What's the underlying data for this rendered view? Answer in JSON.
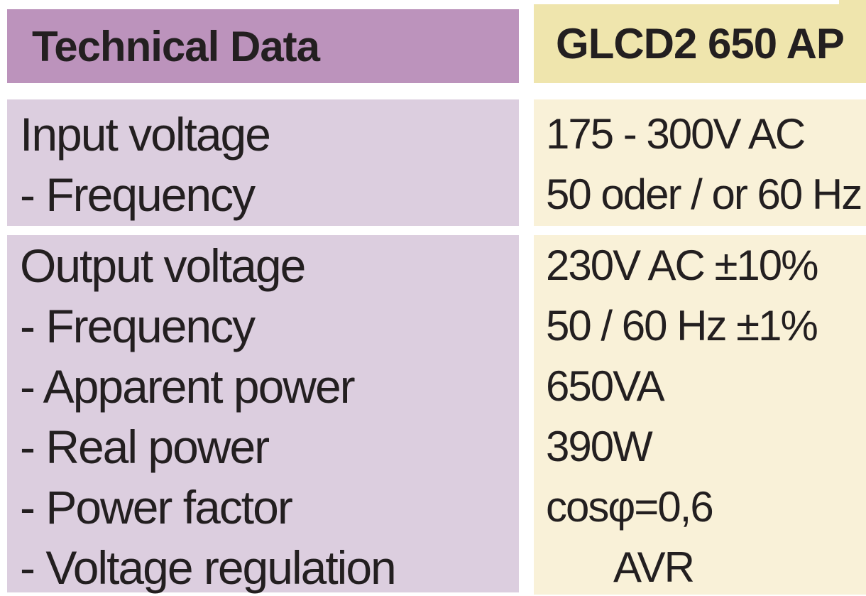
{
  "table": {
    "header": {
      "left": "Technical Data",
      "right": "GLCD2 650 AP"
    },
    "sections": [
      {
        "rows": [
          {
            "label": "Input voltage",
            "value": "175 - 300V AC"
          },
          {
            "label": "- Frequency",
            "value": "50 oder / or 60 Hz"
          }
        ]
      },
      {
        "rows": [
          {
            "label": "Output voltage",
            "value": "230V AC ±10%"
          },
          {
            "label": "- Frequency",
            "value": "50 / 60 Hz ±1%"
          },
          {
            "label": "- Apparent power",
            "value": "650VA"
          },
          {
            "label": "- Real power",
            "value": "390W"
          },
          {
            "label": "- Power factor",
            "value": "cosφ=0,6"
          },
          {
            "label": "- Voltage regulation",
            "value": "AVR"
          }
        ]
      }
    ],
    "colors": {
      "header_left_bg": "#bc93bc",
      "body_left_bg": "#dccedf",
      "header_right_bg": "#efe5ad",
      "body_right_bg": "#f9f1d8",
      "text": "#231f20",
      "separator": "#ffffff"
    }
  }
}
